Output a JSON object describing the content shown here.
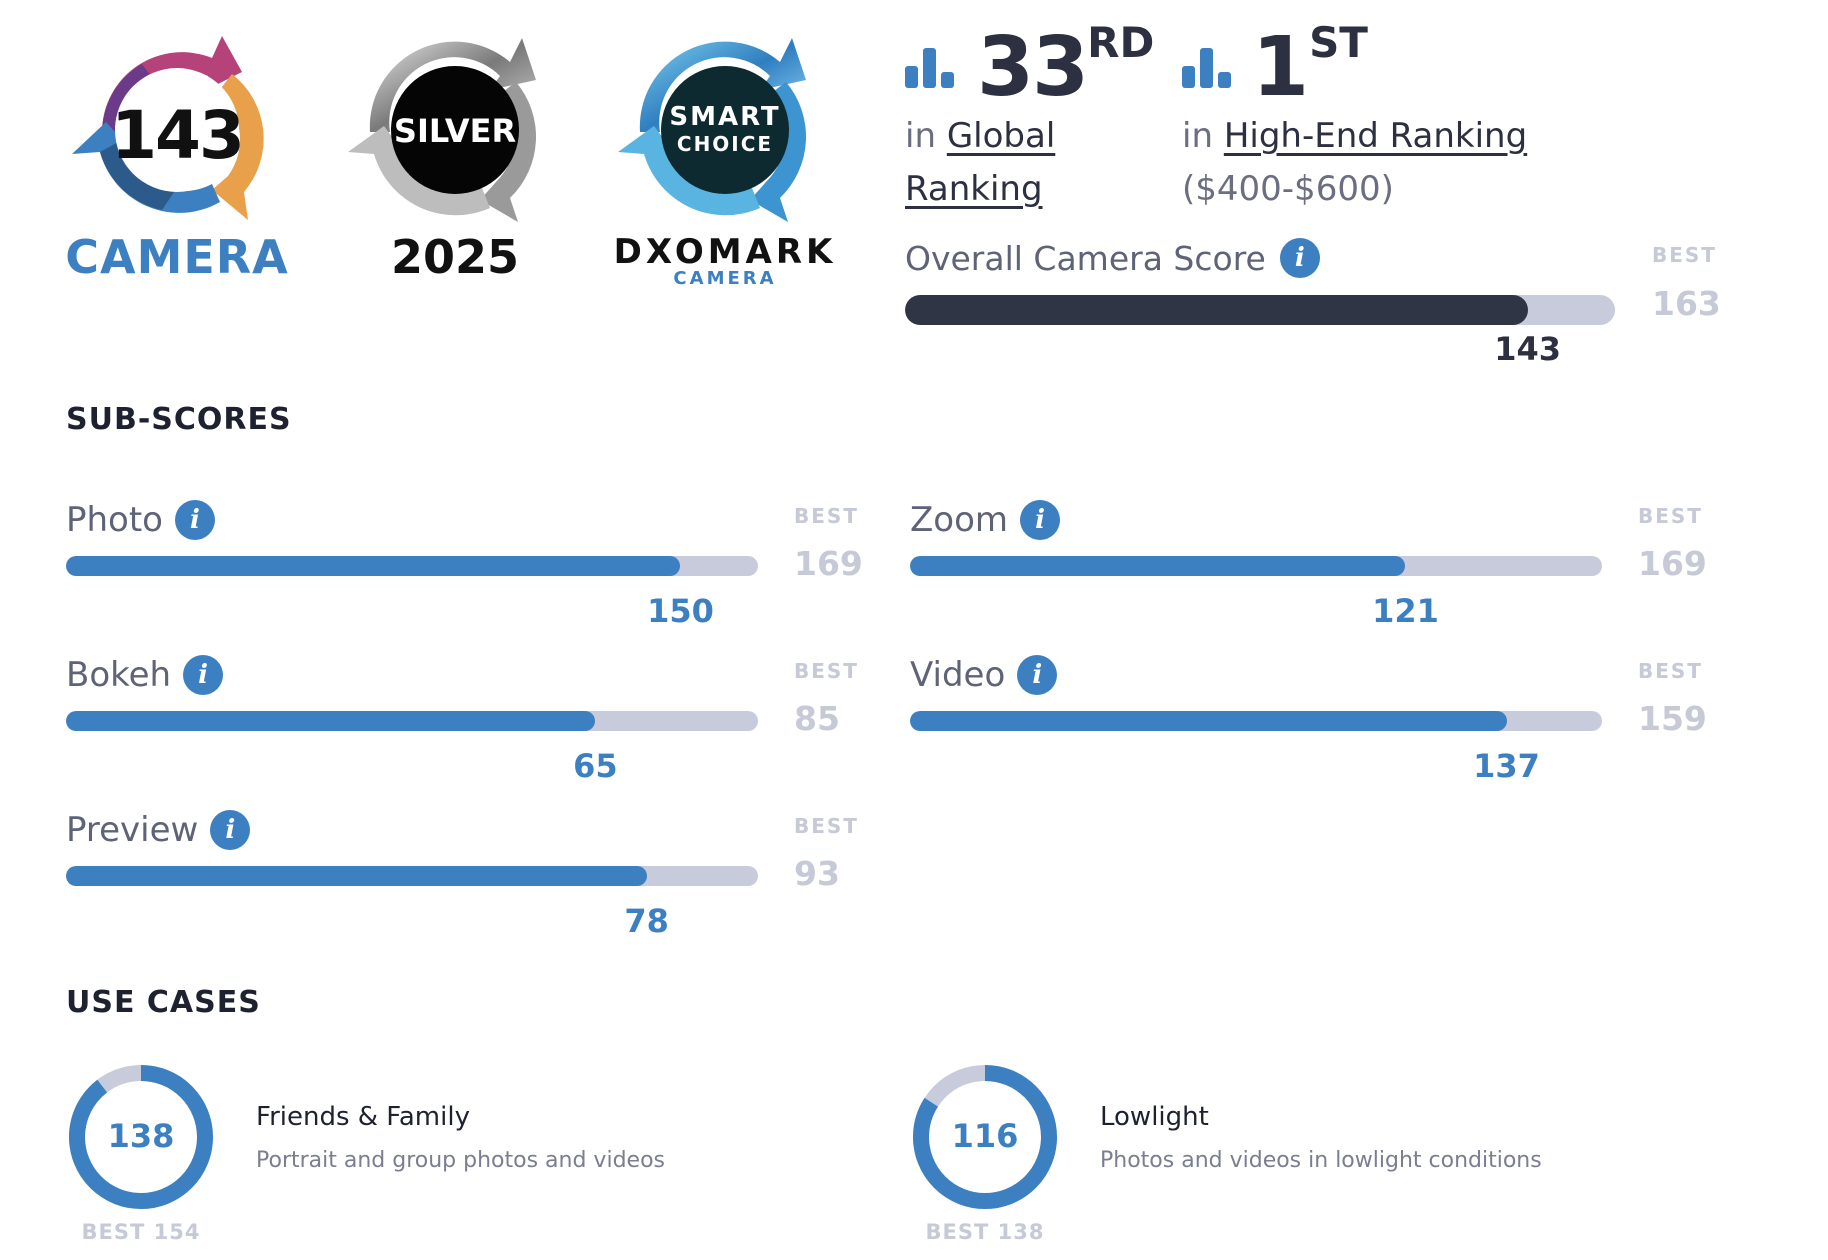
{
  "badges": {
    "camera": {
      "score": "143",
      "label": "CAMERA"
    },
    "silver": {
      "label": "SILVER",
      "year": "2025"
    },
    "smart_choice": {
      "line1": "SMART",
      "line2": "CHOICE",
      "brand": "DXOMARK",
      "sub": "CAMERA"
    }
  },
  "rankings": [
    {
      "number": "33",
      "suffix": "RD",
      "prefix": "in",
      "link": "Global Ranking",
      "link_line1": "Global",
      "link_line2": "Ranking",
      "extra": ""
    },
    {
      "number": "1",
      "suffix": "ST",
      "prefix": "in",
      "link": "High-End Ranking",
      "extra": "($400-$600)"
    }
  ],
  "overall": {
    "label": "Overall Camera Score",
    "value": "143",
    "best_label": "BEST",
    "best": "163",
    "fraction": 0.877
  },
  "subscores": {
    "heading": "SUB-SCORES",
    "items": [
      {
        "name": "Photo",
        "value": "150",
        "best_label": "BEST",
        "best": "169",
        "fraction": 0.888
      },
      {
        "name": "Zoom",
        "value": "121",
        "best_label": "BEST",
        "best": "169",
        "fraction": 0.716
      },
      {
        "name": "Bokeh",
        "value": "65",
        "best_label": "BEST",
        "best": "85",
        "fraction": 0.765
      },
      {
        "name": "Video",
        "value": "137",
        "best_label": "BEST",
        "best": "159",
        "fraction": 0.862
      },
      {
        "name": "Preview",
        "value": "78",
        "best_label": "BEST",
        "best": "93",
        "fraction": 0.839
      }
    ]
  },
  "use_cases": {
    "heading": "USE CASES",
    "items": [
      {
        "title": "Friends & Family",
        "desc": "Portrait and group photos and videos",
        "value": "138",
        "best": "BEST 154",
        "fraction": 0.896
      },
      {
        "title": "Lowlight",
        "desc": "Photos and videos in lowlight conditions",
        "value": "116",
        "best": "BEST 138",
        "fraction": 0.841
      }
    ]
  },
  "colors": {
    "accent": "#3d80c1",
    "dark": "#2c3040",
    "track": "#c8cbdc",
    "muted": "#c6c9d6"
  },
  "icons": {
    "info": "info-icon",
    "rank": "bar-chart-icon"
  }
}
